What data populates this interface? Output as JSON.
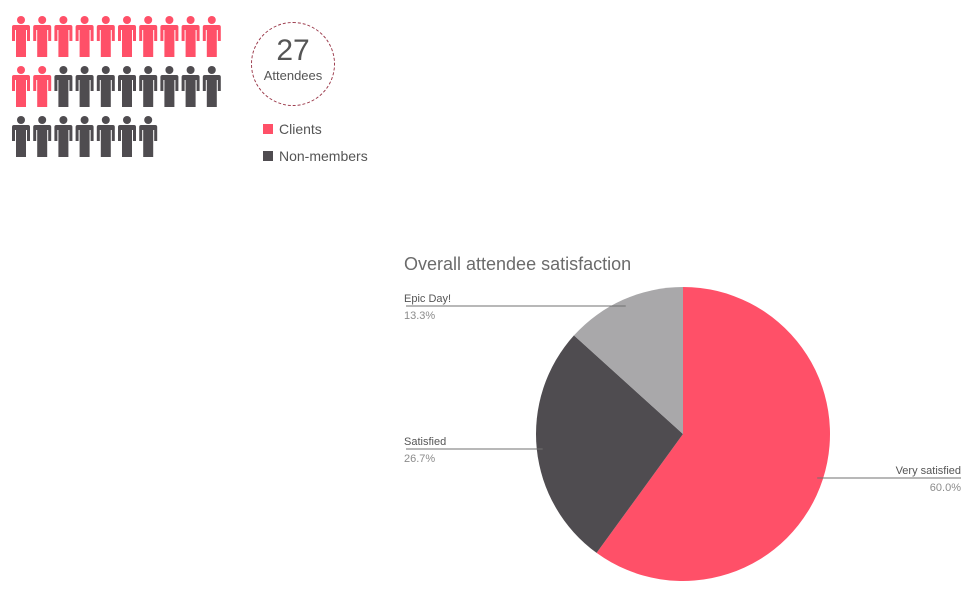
{
  "infographic": {
    "attendee_count": "27",
    "attendee_label": "Attendees",
    "clients_count": 12,
    "nonmembers_count": 15,
    "legend": [
      {
        "label": "Clients",
        "color": "#ff5068"
      },
      {
        "label": "Non-members",
        "color": "#4f4c50"
      }
    ]
  },
  "chart_data": {
    "type": "pie",
    "title": "Overall attendee satisfaction",
    "slices": [
      {
        "label": "Very satisfied",
        "value": 60.0,
        "value_label": "60.0%",
        "color": "#ff5068"
      },
      {
        "label": "Satisfied",
        "value": 26.7,
        "value_label": "26.7%",
        "color": "#4f4c50"
      },
      {
        "label": "Epic Day!",
        "value": 13.3,
        "value_label": "13.3%",
        "color": "#a9a8aa"
      }
    ],
    "start_angle_deg": 0,
    "direction": "clockwise"
  }
}
